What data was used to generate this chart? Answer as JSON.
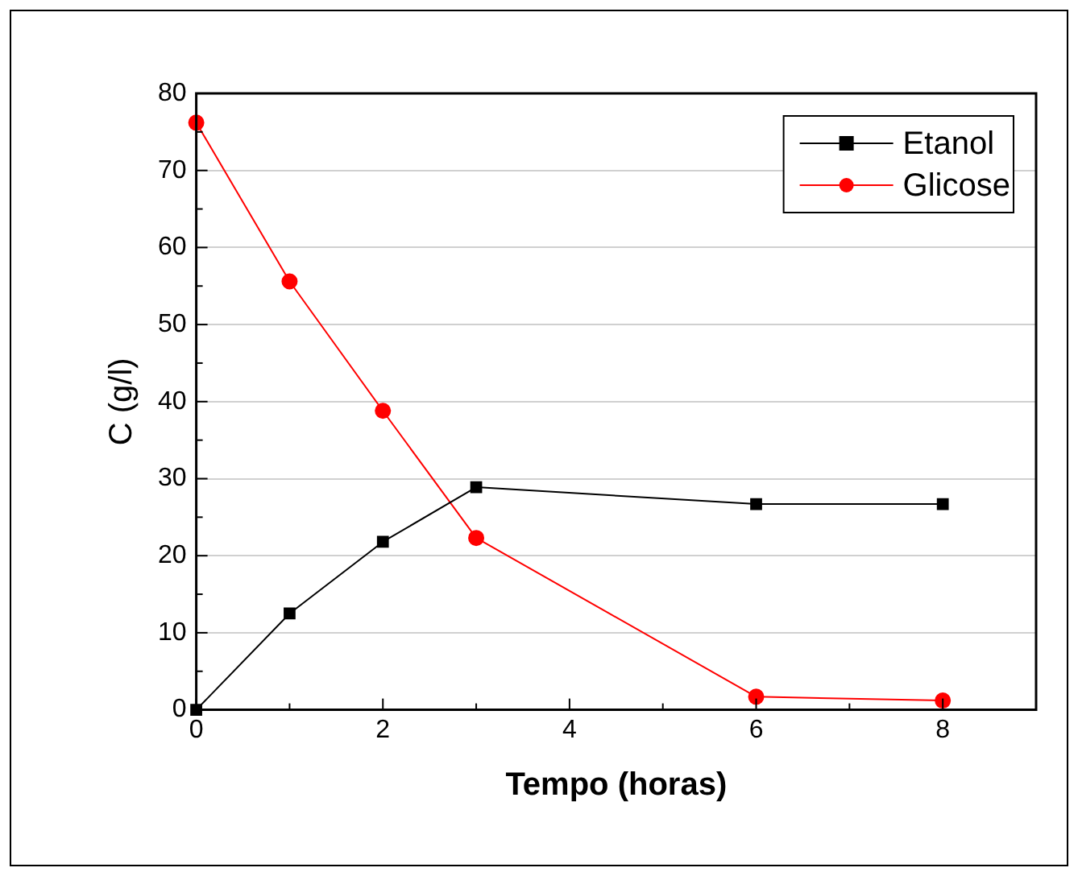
{
  "chart_data": {
    "type": "line",
    "xlabel": "Tempo (horas)",
    "ylabel": "C (g/l)",
    "x": [
      0,
      1,
      2,
      3,
      6,
      8
    ],
    "series": [
      {
        "name": "Etanol",
        "color": "#000000",
        "marker": "square",
        "values": [
          0,
          12.5,
          21.8,
          28.9,
          26.7,
          26.7
        ]
      },
      {
        "name": "Glicose",
        "color": "#ff0000",
        "marker": "circle",
        "values": [
          76.2,
          55.6,
          38.8,
          22.3,
          1.7,
          1.2
        ]
      }
    ],
    "xlim": [
      0,
      9
    ],
    "xticks": [
      0,
      2,
      4,
      6,
      8
    ],
    "ylim": [
      0,
      80
    ],
    "yticks": [
      0,
      10,
      20,
      30,
      40,
      50,
      60,
      70,
      80
    ],
    "grid": "y",
    "legend": "top right",
    "line_style": "solid"
  }
}
